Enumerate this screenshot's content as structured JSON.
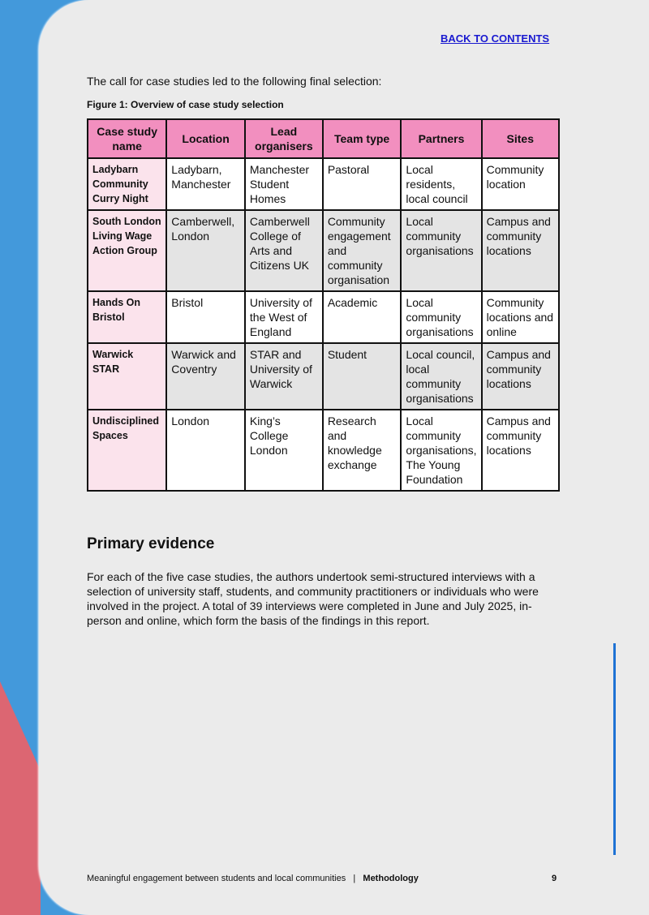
{
  "header": {
    "back_link": "BACK TO CONTENTS"
  },
  "intro": "The call for case studies led to the following final selection:",
  "figure_caption": "Figure 1: Overview of case study selection",
  "table": {
    "headers": [
      "Case study name",
      "Location",
      "Lead organisers",
      "Team type",
      "Partners",
      "Sites"
    ],
    "rows": [
      [
        "Ladybarn Community Curry Night",
        "Ladybarn, Manchester",
        "Manchester Student Homes",
        "Pastoral",
        "Local residents, local council",
        "Community location"
      ],
      [
        "South London Living Wage Action Group",
        "Camberwell, London",
        "Camberwell College of Arts and Citizens UK",
        "Community engagement and community organisation",
        "Local community organisations",
        "Campus and community locations"
      ],
      [
        "Hands On Bristol",
        "Bristol",
        "University of the West of England",
        "Academic",
        "Local community organisations",
        "Community locations and online"
      ],
      [
        "Warwick STAR",
        "Warwick and Coventry",
        "STAR and University of Warwick",
        "Student",
        "Local council, local community organisations",
        "Campus and community locations"
      ],
      [
        "Undisciplined Spaces",
        "London",
        "King’s College London",
        "Research and knowledge exchange",
        "Local community organisations, The Young Foundation",
        "Campus and community locations"
      ]
    ]
  },
  "section": {
    "title": "Primary evidence",
    "body": "For each of the five case studies, the authors undertook semi-structured interviews with a selection of university staff, students, and community practitioners or individuals who were involved in the project. A total of 39 interviews were completed in June and July 2025, in-person and online, which form the basis of the findings in this report."
  },
  "footer": {
    "title": "Meaningful engagement between students and local communities",
    "separator": "|",
    "section": "Methodology",
    "page": "9"
  },
  "colors": {
    "blue": "#4399db",
    "red": "#dc6672",
    "header_pink": "#f28fbf",
    "link": "#1a1ad0"
  }
}
